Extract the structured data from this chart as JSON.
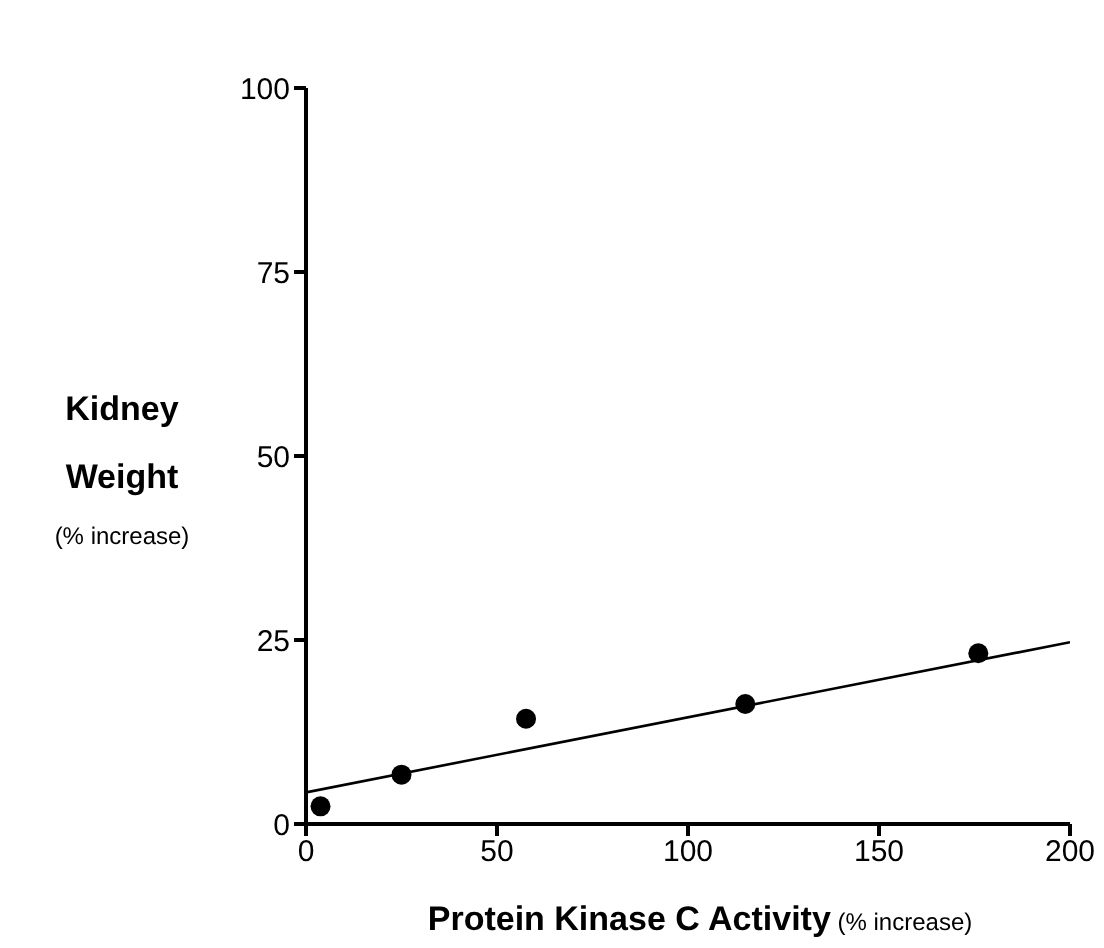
{
  "chart_data": {
    "type": "scatter",
    "xlabel": "Protein Kinase C Activity (% increase)",
    "ylabel": "Kidney Weight (% increase)",
    "xlim": [
      0,
      200
    ],
    "xticks": [
      0,
      50,
      100,
      150,
      200
    ],
    "ylim": [
      0,
      100
    ],
    "yticks": [
      0,
      25,
      50,
      75,
      100
    ],
    "grid": false,
    "marker": "circle",
    "series": [
      {
        "color": "#000000",
        "x": [
          3.8,
          25,
          57.6,
          115,
          176
        ],
        "values": [
          2.4,
          6.7,
          14.3,
          16.3,
          23.2
        ]
      },
      {
        "type": "line",
        "color": "#000000",
        "marker": "none",
        "line_style": "solid",
        "x": [
          0,
          200
        ],
        "values": [
          4.3,
          24.7
        ]
      }
    ]
  }
}
